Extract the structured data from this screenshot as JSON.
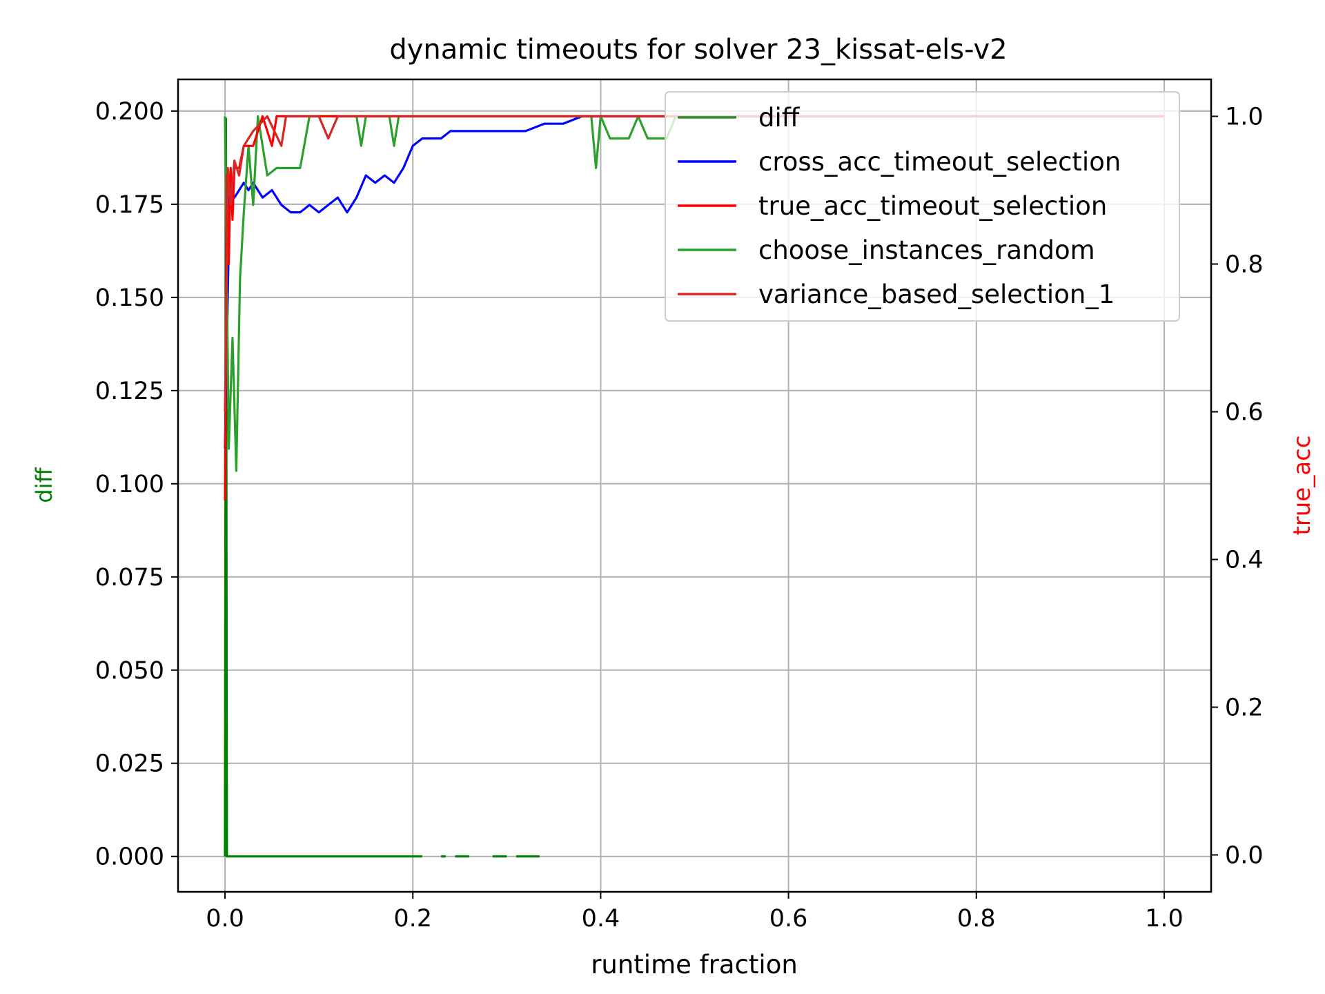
{
  "chart_data": {
    "type": "line",
    "title": "dynamic timeouts for solver 23_kissat-els-v2",
    "xlabel": "runtime fraction",
    "ylabel_left": "diff",
    "ylabel_right": "true_acc",
    "xlim": [
      -0.05,
      1.05
    ],
    "ylim_left": [
      -0.0095,
      0.2085
    ],
    "ylim_right": [
      -0.05,
      1.05
    ],
    "xticks": [
      "0.0",
      "0.2",
      "0.4",
      "0.6",
      "0.8",
      "1.0"
    ],
    "yticks_left": [
      "0.000",
      "0.025",
      "0.050",
      "0.075",
      "0.100",
      "0.125",
      "0.150",
      "0.175",
      "0.200"
    ],
    "yticks_right": [
      "0.0",
      "0.2",
      "0.4",
      "0.6",
      "0.8",
      "1.0"
    ],
    "grid": true,
    "legend_position": "top-right",
    "legend": [
      {
        "label": "diff",
        "color": "#2e8b2e"
      },
      {
        "label": "cross_acc_timeout_selection",
        "color": "#0000ff"
      },
      {
        "label": "true_acc_timeout_selection",
        "color": "#ff0000"
      },
      {
        "label": "choose_instances_random",
        "color": "#2ca02c"
      },
      {
        "label": "variance_based_selection_1",
        "color": "#d62728"
      }
    ],
    "series": [
      {
        "key": "diff",
        "axis": "left",
        "color": "#008000",
        "segments": [
          [
            [
              0.0,
              0.0
            ],
            [
              0.001,
              0.198
            ],
            [
              0.002,
              0.0
            ],
            [
              0.21,
              0.0
            ]
          ],
          [
            [
              0.23,
              0.0
            ],
            [
              0.235,
              0.0
            ]
          ],
          [
            [
              0.245,
              0.0
            ],
            [
              0.26,
              0.0
            ]
          ],
          [
            [
              0.285,
              0.0
            ],
            [
              0.3,
              0.0
            ]
          ],
          [
            [
              0.31,
              0.0
            ],
            [
              0.335,
              0.0
            ]
          ]
        ]
      },
      {
        "key": "cross_acc_timeout_selection",
        "axis": "right",
        "color": "#0000ff",
        "points": [
          [
            0.0,
            0.55
          ],
          [
            0.005,
            0.9
          ],
          [
            0.01,
            0.89
          ],
          [
            0.015,
            0.9
          ],
          [
            0.02,
            0.91
          ],
          [
            0.025,
            0.9
          ],
          [
            0.03,
            0.91
          ],
          [
            0.035,
            0.9
          ],
          [
            0.04,
            0.89
          ],
          [
            0.05,
            0.9
          ],
          [
            0.055,
            0.89
          ],
          [
            0.06,
            0.88
          ],
          [
            0.07,
            0.87
          ],
          [
            0.08,
            0.87
          ],
          [
            0.09,
            0.88
          ],
          [
            0.1,
            0.87
          ],
          [
            0.11,
            0.88
          ],
          [
            0.12,
            0.89
          ],
          [
            0.13,
            0.87
          ],
          [
            0.14,
            0.89
          ],
          [
            0.15,
            0.92
          ],
          [
            0.16,
            0.91
          ],
          [
            0.17,
            0.92
          ],
          [
            0.18,
            0.91
          ],
          [
            0.19,
            0.93
          ],
          [
            0.2,
            0.96
          ],
          [
            0.21,
            0.97
          ],
          [
            0.22,
            0.97
          ],
          [
            0.23,
            0.97
          ],
          [
            0.24,
            0.98
          ],
          [
            0.25,
            0.98
          ],
          [
            0.27,
            0.98
          ],
          [
            0.3,
            0.98
          ],
          [
            0.32,
            0.98
          ],
          [
            0.34,
            0.99
          ],
          [
            0.36,
            0.99
          ],
          [
            0.38,
            1.0
          ],
          [
            0.42,
            1.0
          ],
          [
            0.5,
            1.0
          ],
          [
            1.0,
            1.0
          ]
        ]
      },
      {
        "key": "true_acc_timeout_selection",
        "axis": "right",
        "color": "#ff0000",
        "points": [
          [
            0.0,
            0.48
          ],
          [
            0.002,
            0.92
          ],
          [
            0.004,
            0.8
          ],
          [
            0.006,
            0.93
          ],
          [
            0.008,
            0.86
          ],
          [
            0.01,
            0.93
          ],
          [
            0.015,
            0.93
          ],
          [
            0.02,
            0.96
          ],
          [
            0.03,
            0.96
          ],
          [
            0.04,
            1.0
          ],
          [
            0.05,
            0.96
          ],
          [
            0.055,
            1.0
          ],
          [
            0.07,
            1.0
          ],
          [
            0.09,
            1.0
          ],
          [
            0.1,
            1.0
          ],
          [
            1.0,
            1.0
          ]
        ]
      },
      {
        "key": "choose_instances_random",
        "axis": "right",
        "color": "#2ca02c",
        "points": [
          [
            0.0,
            1.0
          ],
          [
            0.004,
            0.55
          ],
          [
            0.008,
            0.7
          ],
          [
            0.012,
            0.52
          ],
          [
            0.016,
            0.78
          ],
          [
            0.02,
            0.87
          ],
          [
            0.025,
            0.96
          ],
          [
            0.03,
            0.88
          ],
          [
            0.035,
            1.0
          ],
          [
            0.045,
            0.92
          ],
          [
            0.055,
            0.93
          ],
          [
            0.07,
            0.93
          ],
          [
            0.08,
            0.93
          ],
          [
            0.09,
            1.0
          ],
          [
            0.14,
            1.0
          ],
          [
            0.145,
            0.96
          ],
          [
            0.15,
            1.0
          ],
          [
            0.175,
            1.0
          ],
          [
            0.18,
            0.96
          ],
          [
            0.185,
            1.0
          ],
          [
            0.2,
            1.0
          ],
          [
            0.39,
            1.0
          ],
          [
            0.395,
            0.93
          ],
          [
            0.4,
            1.0
          ],
          [
            0.41,
            0.97
          ],
          [
            0.43,
            0.97
          ],
          [
            0.44,
            1.0
          ],
          [
            0.45,
            0.97
          ],
          [
            0.47,
            0.97
          ],
          [
            0.48,
            1.0
          ],
          [
            1.0,
            1.0
          ]
        ]
      },
      {
        "key": "variance_based_selection_1",
        "axis": "right",
        "color": "#d62728",
        "points": [
          [
            0.0,
            0.6
          ],
          [
            0.003,
            0.93
          ],
          [
            0.006,
            0.88
          ],
          [
            0.01,
            0.94
          ],
          [
            0.015,
            0.92
          ],
          [
            0.02,
            0.96
          ],
          [
            0.03,
            0.98
          ],
          [
            0.045,
            1.0
          ],
          [
            0.06,
            0.96
          ],
          [
            0.065,
            1.0
          ],
          [
            0.1,
            1.0
          ],
          [
            0.11,
            0.97
          ],
          [
            0.12,
            1.0
          ],
          [
            0.15,
            1.0
          ],
          [
            1.0,
            1.0
          ]
        ]
      }
    ]
  }
}
